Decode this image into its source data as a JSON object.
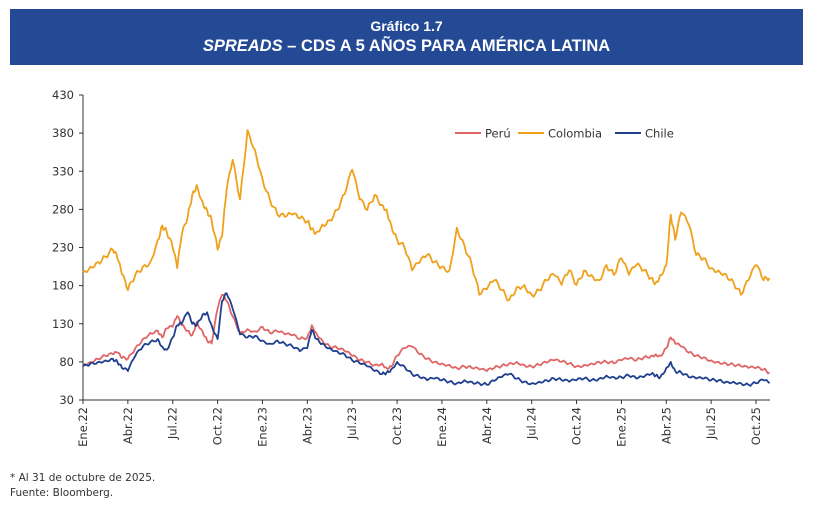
{
  "header": {
    "chart_number": "Gráfico 1.7",
    "title_italic": "SPREADS",
    "title_rest": " – CDS A 5 AÑOS PARA AMÉRICA LATINA",
    "background_color": "#244a96"
  },
  "footer": {
    "note": "* Al 31 de octubre de 2025.",
    "source": "Fuente: Bloomberg."
  },
  "chart_data": {
    "type": "line",
    "title": "SPREADS – CDS A 5 AÑOS PARA AMÉRICA LATINA",
    "xlabel": "",
    "ylabel": "",
    "ylim": [
      30,
      430
    ],
    "yticks": [
      30,
      80,
      130,
      180,
      230,
      280,
      330,
      380,
      430
    ],
    "x_unit": "months since Jan 2022",
    "xlim": [
      0,
      45.9
    ],
    "xticks": [
      {
        "x": 0,
        "label": "Ene.22"
      },
      {
        "x": 3,
        "label": "Abr.22"
      },
      {
        "x": 6,
        "label": "Jul.22"
      },
      {
        "x": 9,
        "label": "Oct.22"
      },
      {
        "x": 12,
        "label": "Ene.23"
      },
      {
        "x": 15,
        "label": "Abr.23"
      },
      {
        "x": 18,
        "label": "Jul.23"
      },
      {
        "x": 21,
        "label": "Oct.23"
      },
      {
        "x": 24,
        "label": "Ene.24"
      },
      {
        "x": 27,
        "label": "Abr.24"
      },
      {
        "x": 30,
        "label": "Jul.24"
      },
      {
        "x": 33,
        "label": "Oct.24"
      },
      {
        "x": 36,
        "label": "Ene.25"
      },
      {
        "x": 39,
        "label": "Abr.25"
      },
      {
        "x": 42,
        "label": "Jul.25"
      },
      {
        "x": 45,
        "label": "Oct.25"
      }
    ],
    "grid": false,
    "legend": {
      "position": "top-right"
    },
    "series": [
      {
        "name": "Perú",
        "color": "#e06666",
        "x": [
          0,
          0.5,
          1,
          1.5,
          2,
          2.3,
          2.6,
          3,
          3.5,
          4,
          4.5,
          5,
          5.3,
          5.6,
          6,
          6.3,
          6.6,
          7,
          7.3,
          7.6,
          8,
          8.3,
          8.6,
          9,
          9.3,
          9.6,
          10,
          10.5,
          11,
          11.5,
          12,
          12.5,
          13,
          13.5,
          14,
          14.5,
          15,
          15.3,
          15.6,
          16,
          16.5,
          17,
          17.5,
          18,
          18.5,
          19,
          19.5,
          20,
          20.3,
          20.6,
          21,
          21.5,
          22,
          22.5,
          23,
          23.5,
          24,
          24.5,
          25,
          25.5,
          26,
          26.5,
          27,
          27.5,
          28,
          28.5,
          29,
          29.5,
          30,
          30.5,
          31,
          31.5,
          32,
          32.5,
          33,
          33.5,
          34,
          34.5,
          35,
          35.5,
          36,
          36.5,
          37,
          37.5,
          38,
          38.3,
          38.6,
          39,
          39.3,
          39.6,
          40,
          40.5,
          41,
          41.5,
          42,
          42.5,
          43,
          43.5,
          44,
          44.5,
          45,
          45.5,
          45.9
        ],
        "values": [
          76,
          80,
          84,
          88,
          90,
          92,
          85,
          84,
          98,
          110,
          118,
          121,
          112,
          124,
          126,
          140,
          128,
          121,
          115,
          132,
          120,
          108,
          104,
          150,
          168,
          160,
          140,
          118,
          123,
          120,
          126,
          118,
          120,
          116,
          115,
          110,
          112,
          128,
          118,
          108,
          100,
          98,
          94,
          88,
          82,
          80,
          76,
          78,
          72,
          74,
          88,
          98,
          100,
          90,
          84,
          80,
          78,
          76,
          72,
          74,
          72,
          70,
          68,
          72,
          75,
          78,
          80,
          76,
          74,
          76,
          79,
          82,
          80,
          78,
          74,
          76,
          78,
          80,
          80,
          78,
          82,
          84,
          82,
          86,
          88,
          90,
          88,
          98,
          112,
          104,
          100,
          92,
          88,
          86,
          82,
          80,
          78,
          76,
          74,
          72,
          72,
          70,
          66
        ]
      },
      {
        "name": "Colombia",
        "color": "#f0a11c",
        "x": [
          0,
          0.5,
          1,
          1.5,
          2,
          2.3,
          2.6,
          3,
          3.5,
          4,
          4.5,
          5,
          5.3,
          5.6,
          6,
          6.3,
          6.6,
          7,
          7.3,
          7.6,
          8,
          8.3,
          8.6,
          9,
          9.3,
          9.6,
          10,
          10.5,
          11,
          11.5,
          12,
          12.5,
          13,
          13.5,
          14,
          14.5,
          15,
          15.3,
          15.6,
          16,
          16.5,
          17,
          17.5,
          18,
          18.5,
          19,
          19.5,
          20,
          20.3,
          20.6,
          21,
          21.5,
          22,
          22.5,
          23,
          23.5,
          24,
          24.5,
          25,
          25.5,
          26,
          26.5,
          27,
          27.5,
          28,
          28.5,
          29,
          29.5,
          30,
          30.5,
          31,
          31.5,
          32,
          32.5,
          33,
          33.5,
          34,
          34.5,
          35,
          35.5,
          36,
          36.5,
          37,
          37.5,
          38,
          38.3,
          38.6,
          39,
          39.3,
          39.6,
          40,
          40.5,
          41,
          41.5,
          42,
          42.5,
          43,
          43.5,
          44,
          44.5,
          45,
          45.5,
          45.9
        ],
        "values": [
          198,
          205,
          211,
          218,
          227,
          216,
          195,
          174,
          194,
          205,
          211,
          240,
          259,
          250,
          230,
          203,
          246,
          270,
          299,
          312,
          290,
          279,
          266,
          227,
          244,
          305,
          345,
          293,
          384,
          358,
          320,
          293,
          273,
          270,
          273,
          268,
          264,
          255,
          250,
          260,
          266,
          279,
          300,
          332,
          293,
          279,
          299,
          286,
          280,
          260,
          240,
          230,
          200,
          210,
          220,
          211,
          205,
          200,
          256,
          233,
          207,
          168,
          175,
          187,
          174,
          161,
          178,
          181,
          168,
          174,
          187,
          194,
          181,
          200,
          181,
          200,
          194,
          187,
          207,
          194,
          216,
          194,
          207,
          200,
          190,
          184,
          194,
          207,
          273,
          240,
          276,
          260,
          220,
          216,
          203,
          200,
          195,
          184,
          168,
          187,
          207,
          187,
          190
        ]
      },
      {
        "name": "Chile",
        "color": "#1f3f8f",
        "x": [
          0,
          0.5,
          1,
          1.5,
          2,
          2.3,
          2.6,
          3,
          3.5,
          4,
          4.5,
          5,
          5.3,
          5.6,
          6,
          6.3,
          6.6,
          7,
          7.3,
          7.6,
          8,
          8.3,
          8.6,
          9,
          9.3,
          9.6,
          10,
          10.5,
          11,
          11.5,
          12,
          12.5,
          13,
          13.5,
          14,
          14.5,
          15,
          15.3,
          15.6,
          16,
          16.5,
          17,
          17.5,
          18,
          18.5,
          19,
          19.5,
          20,
          20.3,
          20.6,
          21,
          21.5,
          22,
          22.5,
          23,
          23.5,
          24,
          24.5,
          25,
          25.5,
          26,
          26.5,
          27,
          27.5,
          28,
          28.5,
          29,
          29.5,
          30,
          30.5,
          31,
          31.5,
          32,
          32.5,
          33,
          33.5,
          34,
          34.5,
          35,
          35.5,
          36,
          36.5,
          37,
          37.5,
          38,
          38.3,
          38.6,
          39,
          39.3,
          39.6,
          40,
          40.5,
          41,
          41.5,
          42,
          42.5,
          43,
          43.5,
          44,
          44.5,
          45,
          45.5,
          45.9
        ],
        "values": [
          74,
          78,
          80,
          82,
          84,
          80,
          72,
          68,
          88,
          100,
          106,
          110,
          100,
          96,
          112,
          128,
          130,
          145,
          130,
          128,
          142,
          145,
          128,
          110,
          160,
          170,
          150,
          116,
          112,
          114,
          108,
          104,
          108,
          104,
          100,
          94,
          98,
          122,
          110,
          104,
          98,
          94,
          90,
          82,
          78,
          74,
          68,
          64,
          66,
          70,
          80,
          74,
          64,
          60,
          56,
          58,
          56,
          54,
          52,
          56,
          54,
          52,
          50,
          55,
          60,
          64,
          58,
          54,
          52,
          54,
          56,
          58,
          56,
          54,
          56,
          58,
          56,
          58,
          62,
          60,
          60,
          62,
          58,
          60,
          64,
          62,
          60,
          72,
          80,
          68,
          66,
          60,
          58,
          58,
          56,
          56,
          54,
          54,
          52,
          50,
          52,
          56,
          52
        ]
      }
    ]
  }
}
